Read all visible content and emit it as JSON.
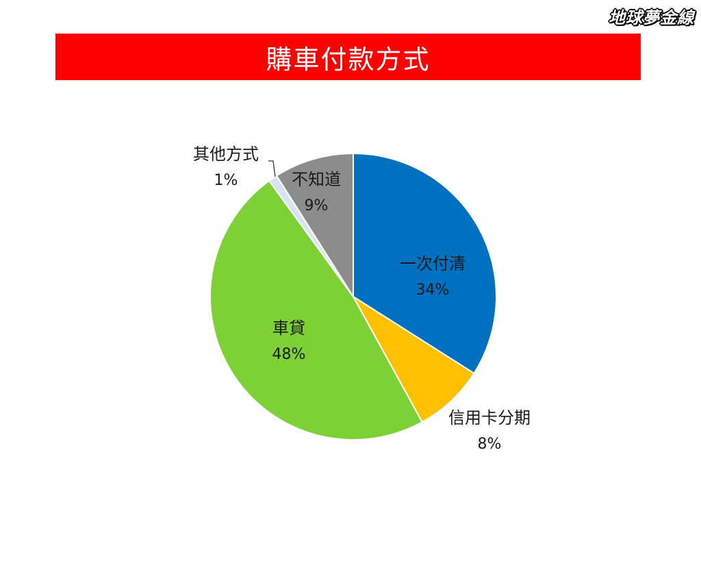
{
  "logo": "地球夢金線",
  "title": "購車付款方式",
  "chart_data": {
    "type": "pie",
    "title": "購車付款方式",
    "start_angle_deg": 0,
    "direction": "clockwise",
    "slices": [
      {
        "label": "一次付清",
        "value": 34,
        "value_label": "34%",
        "color": "#0070C0"
      },
      {
        "label": "信用卡分期",
        "value": 8,
        "value_label": "8%",
        "color": "#FFC000"
      },
      {
        "label": "車貸",
        "value": 48,
        "value_label": "48%",
        "color": "#7DD136"
      },
      {
        "label": "其他方式",
        "value": 1,
        "value_label": "1%",
        "color": "#D9E4F2"
      },
      {
        "label": "不知道",
        "value": 9,
        "value_label": "9%",
        "color": "#8C8C8C"
      }
    ]
  }
}
